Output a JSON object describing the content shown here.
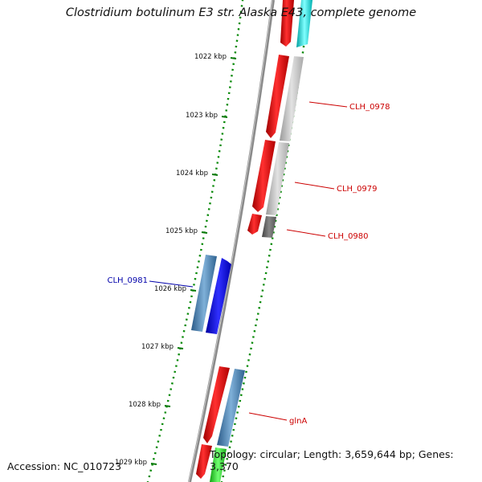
{
  "title": "Clostridium botulinum E3 str. Alaska E43, complete genome",
  "accession": "Accession: NC_010723",
  "summary": "Topology: circular; Length: 3,659,644 bp; Genes: 3,370",
  "ticks": [
    "1022 kbp",
    "1023 kbp",
    "1024 kbp",
    "1025 kbp",
    "1026 kbp",
    "1027 kbp",
    "1028 kbp",
    "1029 kbp"
  ],
  "gene_labels": [
    {
      "name": "CLH_0978",
      "color": "#cc0000"
    },
    {
      "name": "CLH_0979",
      "color": "#cc0000"
    },
    {
      "name": "CLH_0980",
      "color": "#cc0000"
    },
    {
      "name": "CLH_0981",
      "color": "#0000aa"
    },
    {
      "name": "glnA",
      "color": "#cc0000"
    }
  ],
  "colors": {
    "backbone": "#7a7a7a",
    "tick_dots": "#0a8a0a",
    "red_feature": "#ee0000",
    "cyan_feature": "#00e5e5",
    "grey_feature": "#bdbdbd",
    "dark_grey_feature": "#666666",
    "steel_feature": "#4a7fae",
    "blue_feature": "#0000ee",
    "green_feature": "#22cc22"
  }
}
